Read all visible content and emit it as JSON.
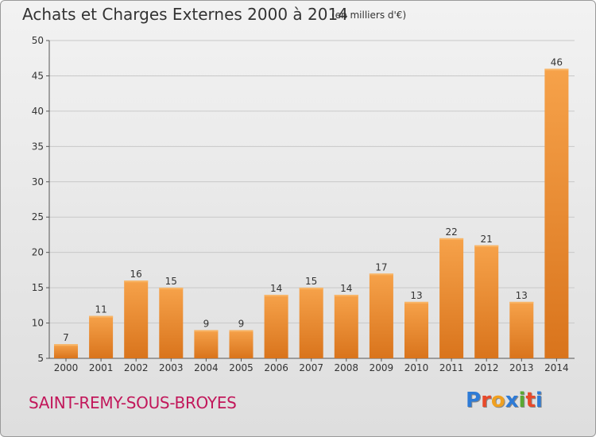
{
  "header": {
    "title": "Achats et Charges Externes 2000 à 2014",
    "subtitle": "(en milliers d'€)"
  },
  "footer": {
    "location": "SAINT-REMY-SOUS-BROYES",
    "brand": "Proxiti"
  },
  "colors": {
    "bar_light": "#f6a24a",
    "bar_dark": "#d9741c",
    "grid": "#c8c8c8",
    "location_text": "#c2185b"
  },
  "chart_data": {
    "type": "bar",
    "title": "Achats et Charges Externes 2000 à 2014",
    "subtitle": "(en milliers d'€)",
    "categories": [
      "2000",
      "2001",
      "2002",
      "2003",
      "2004",
      "2005",
      "2006",
      "2007",
      "2008",
      "2009",
      "2010",
      "2011",
      "2012",
      "2013",
      "2014"
    ],
    "values": [
      7,
      11,
      16,
      15,
      9,
      9,
      14,
      15,
      14,
      17,
      13,
      22,
      21,
      13,
      46
    ],
    "ylim": [
      5,
      50
    ],
    "yticks": [
      5,
      10,
      15,
      20,
      25,
      30,
      35,
      40,
      45,
      50
    ],
    "grid": true,
    "data_labels": true
  }
}
